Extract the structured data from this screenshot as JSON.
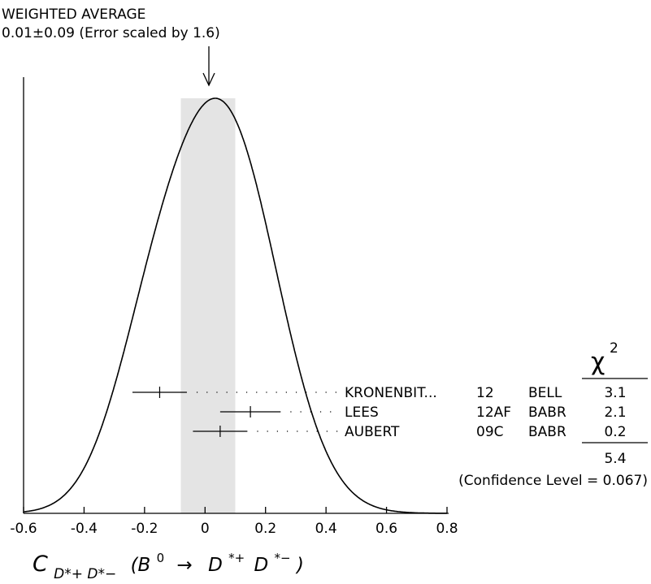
{
  "chart_data": {
    "type": "ideogram",
    "title": "WEIGHTED AVERAGE",
    "subtitle": "0.01±0.09 (Error scaled by 1.6)",
    "average": {
      "value": 0.01,
      "error": 0.09,
      "band": [
        -0.08,
        0.1
      ]
    },
    "xlim": [
      -0.6,
      0.8
    ],
    "xticks": [
      -0.6,
      -0.4,
      -0.2,
      0,
      0.2,
      0.4,
      0.6,
      0.8
    ],
    "xtick_labels": [
      "-0.6",
      "-0.4",
      "-0.2",
      "0",
      "0.2",
      "0.4",
      "0.6",
      "0.8"
    ],
    "xlabel": {
      "main": "C",
      "sub": "D*+ D*−",
      "paren_open": "(B",
      "sup0": "0",
      "arrow": "→",
      "d1": "D",
      "sup1": "*+",
      "d2": "D",
      "sup2": "*−",
      "paren_close": ")"
    },
    "chi2_header": {
      "symbol": "χ",
      "power": "2"
    },
    "measurements": [
      {
        "author": "KRONENBIT...",
        "ref": "12",
        "experiment": "BELL",
        "value": -0.15,
        "error": 0.09,
        "chi2": "3.1"
      },
      {
        "author": "LEES",
        "ref": "12AF",
        "experiment": "BABR",
        "value": 0.15,
        "error": 0.1,
        "chi2": "2.1"
      },
      {
        "author": "AUBERT",
        "ref": "09C",
        "experiment": "BABR",
        "value": 0.05,
        "error": 0.09,
        "chi2": "0.2"
      }
    ],
    "chi2_total": "5.4",
    "confidence_level": "(Confidence Level = 0.067)",
    "grid": false
  },
  "colors": {
    "band": "#e4e4e4",
    "ink": "#000000"
  }
}
